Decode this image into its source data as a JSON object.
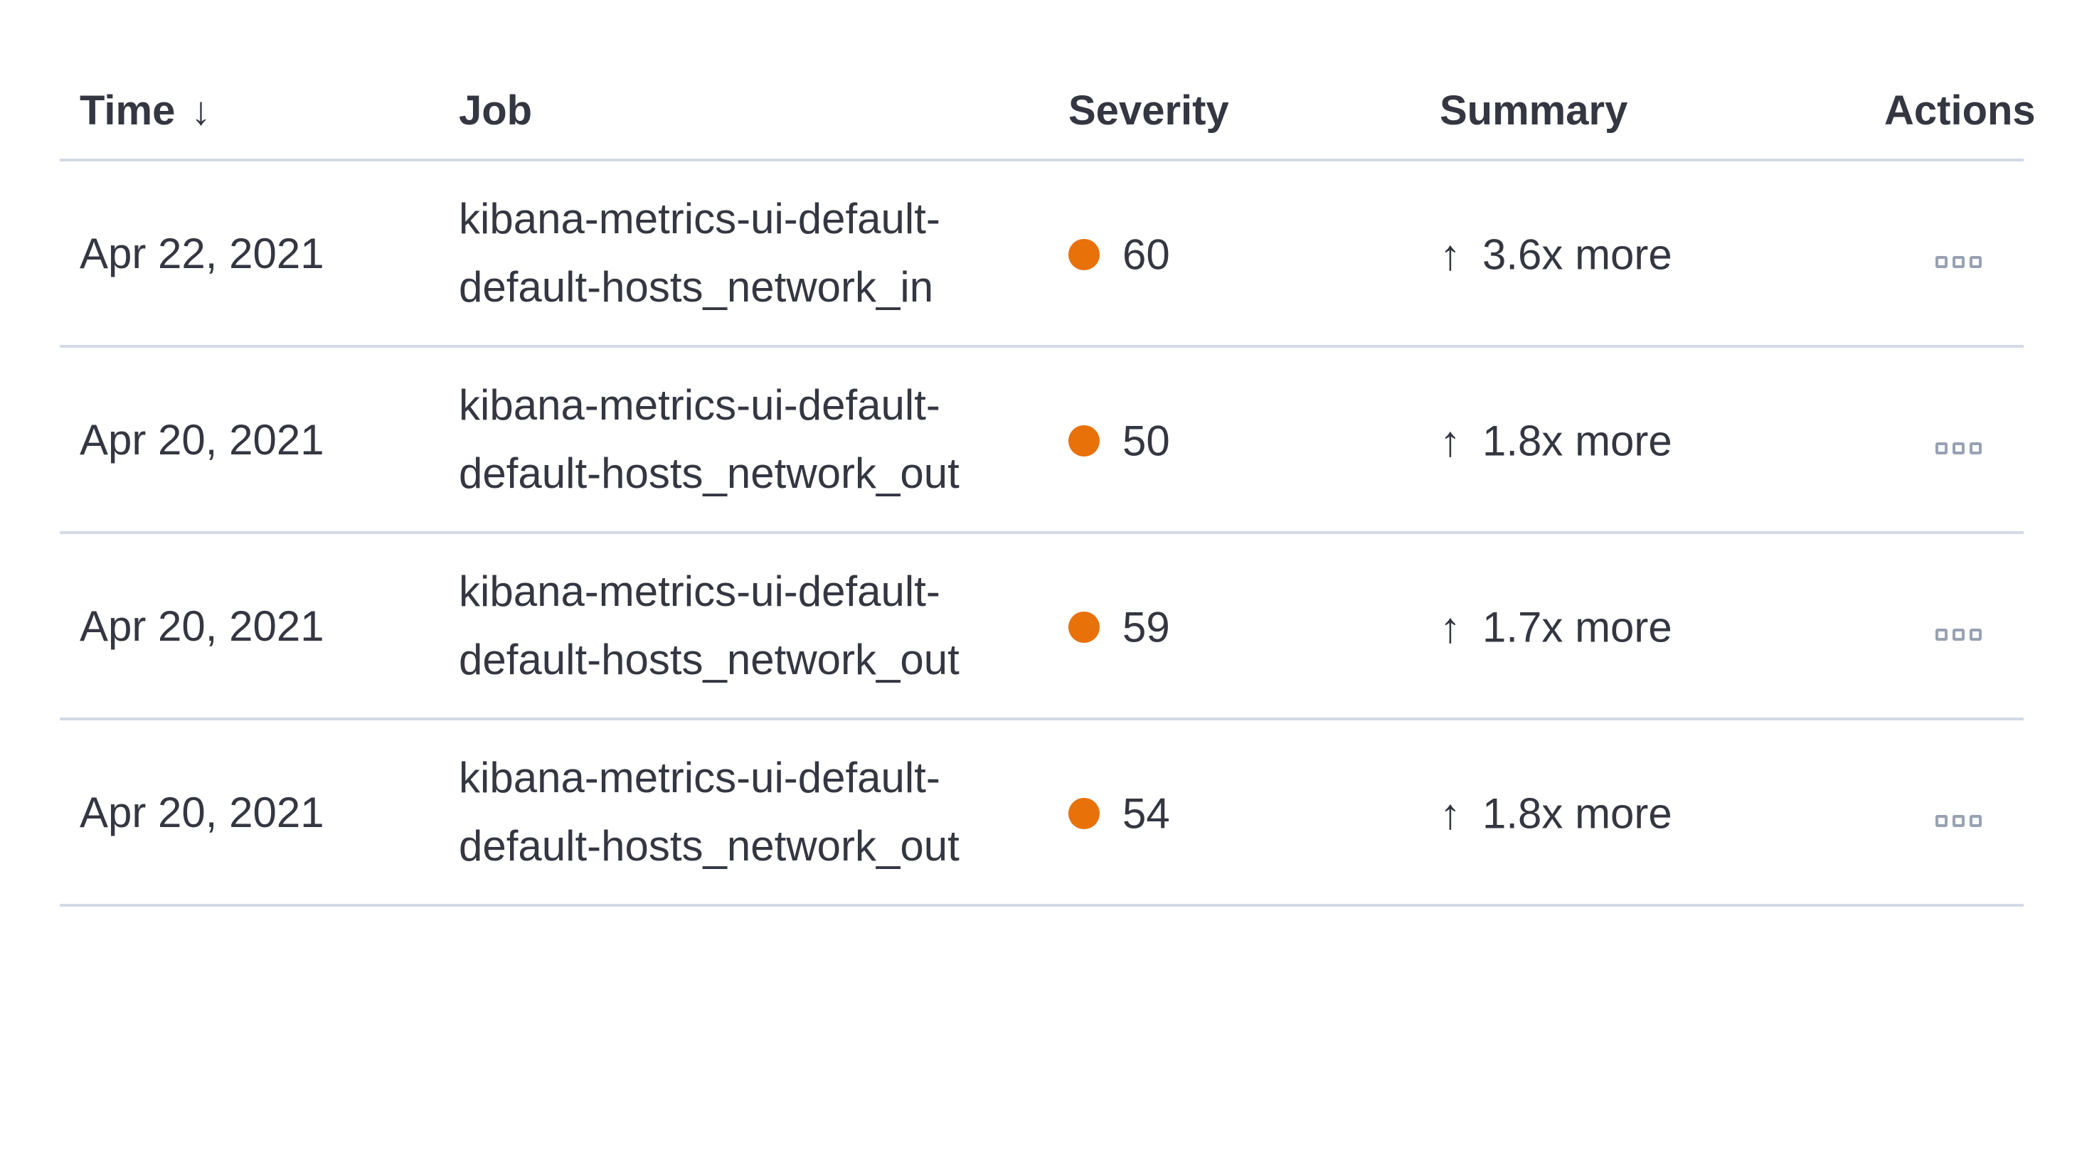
{
  "colors": {
    "severity_dot": "#E8710A",
    "row_border": "#D3DAE6",
    "text": "#343741",
    "actions_icon": "#98A2B3"
  },
  "table": {
    "columns": [
      {
        "key": "time",
        "label": "Time",
        "sort_icon": "↓"
      },
      {
        "key": "job",
        "label": "Job"
      },
      {
        "key": "severity",
        "label": "Severity"
      },
      {
        "key": "summary",
        "label": "Summary"
      },
      {
        "key": "actions",
        "label": "Actions"
      }
    ],
    "rows": [
      {
        "time": "Apr 22, 2021",
        "job": "kibana-metrics-ui-default-default-hosts_network_in",
        "severity": 60,
        "direction_icon": "↑",
        "summary": "3.6x more"
      },
      {
        "time": "Apr 20, 2021",
        "job": "kibana-metrics-ui-default-default-hosts_network_out",
        "severity": 50,
        "direction_icon": "↑",
        "summary": "1.8x more"
      },
      {
        "time": "Apr 20, 2021",
        "job": "kibana-metrics-ui-default-default-hosts_network_out",
        "severity": 59,
        "direction_icon": "↑",
        "summary": "1.7x more"
      },
      {
        "time": "Apr 20, 2021",
        "job": "kibana-metrics-ui-default-default-hosts_network_out",
        "severity": 54,
        "direction_icon": "↑",
        "summary": "1.8x more"
      }
    ]
  }
}
